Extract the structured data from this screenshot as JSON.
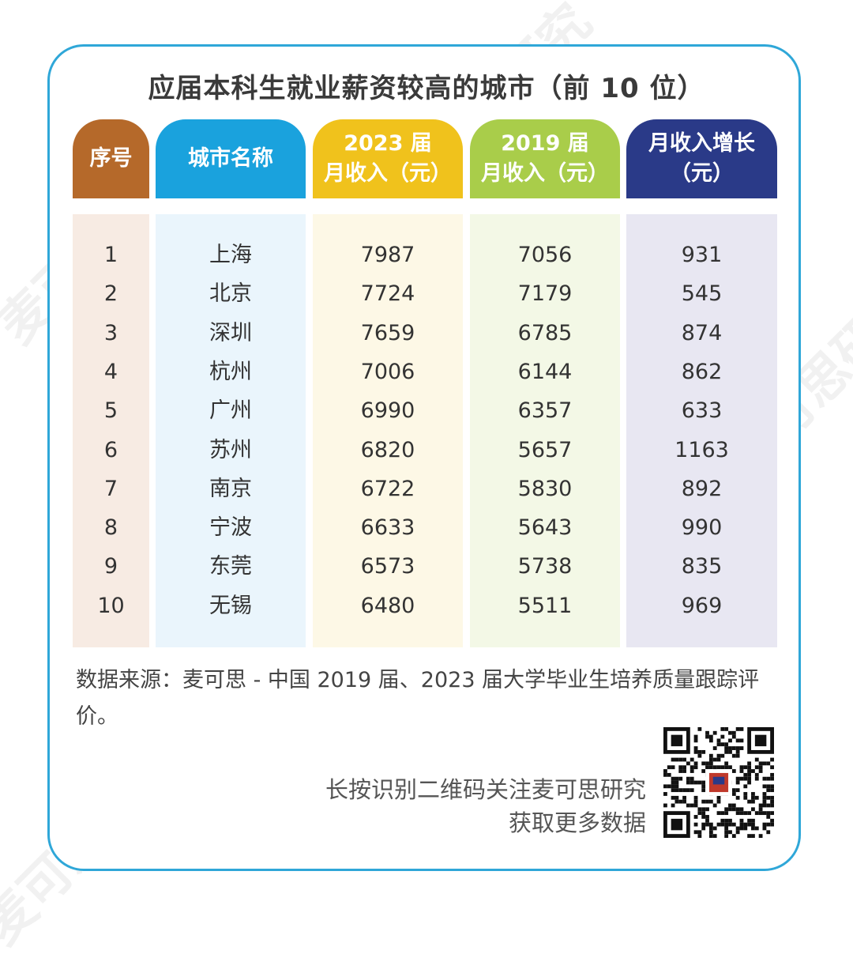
{
  "title": "应届本科生就业薪资较高的城市（前 10 位）",
  "headers": {
    "rank": "序号",
    "city": "城市名称",
    "y2023_line1": "2023 届",
    "y2023_line2": "月收入（元）",
    "y2019_line1": "2019 届",
    "y2019_line2": "月收入（元）",
    "growth_line1": "月收入增长",
    "growth_line2": "（元）"
  },
  "colors": {
    "rank_header": "#b5692a",
    "rank_bg": "#f7ebe3",
    "city_header": "#1aa2dd",
    "city_bg": "#eaf5fc",
    "y2023_header": "#f0c21c",
    "y2023_bg": "#fdf8e6",
    "y2019_header": "#a9cd4a",
    "y2019_bg": "#f3f8e6",
    "growth_header": "#2a3a88",
    "growth_bg": "#e8e7f2",
    "card_border": "#2fa7d8"
  },
  "chart_data": {
    "type": "table",
    "title": "应届本科生就业薪资较高的城市（前 10 位）",
    "columns": [
      "序号",
      "城市名称",
      "2023 届月收入（元）",
      "2019 届月收入（元）",
      "月收入增长（元）"
    ],
    "rows": [
      {
        "rank": "1",
        "city": "上海",
        "y2023": "7987",
        "y2019": "7056",
        "growth": "931"
      },
      {
        "rank": "2",
        "city": "北京",
        "y2023": "7724",
        "y2019": "7179",
        "growth": "545"
      },
      {
        "rank": "3",
        "city": "深圳",
        "y2023": "7659",
        "y2019": "6785",
        "growth": "874"
      },
      {
        "rank": "4",
        "city": "杭州",
        "y2023": "7006",
        "y2019": "6144",
        "growth": "862"
      },
      {
        "rank": "5",
        "city": "广州",
        "y2023": "6990",
        "y2019": "6357",
        "growth": "633"
      },
      {
        "rank": "6",
        "city": "苏州",
        "y2023": "6820",
        "y2019": "5657",
        "growth": "1163"
      },
      {
        "rank": "7",
        "city": "南京",
        "y2023": "6722",
        "y2019": "5830",
        "growth": "892"
      },
      {
        "rank": "8",
        "city": "宁波",
        "y2023": "6633",
        "y2019": "5643",
        "growth": "990"
      },
      {
        "rank": "9",
        "city": "东莞",
        "y2023": "6573",
        "y2019": "5738",
        "growth": "835"
      },
      {
        "rank": "10",
        "city": "无锡",
        "y2023": "6480",
        "y2019": "5511",
        "growth": "969"
      }
    ]
  },
  "source": "数据来源：麦可思 - 中国 2019 届、2023 届大学毕业生培养质量跟踪评价。",
  "cta": {
    "line1": "长按识别二维码关注麦可思研究",
    "line2": "获取更多数据"
  },
  "qr_icon": "qr-code",
  "watermark": "麦可思研究"
}
